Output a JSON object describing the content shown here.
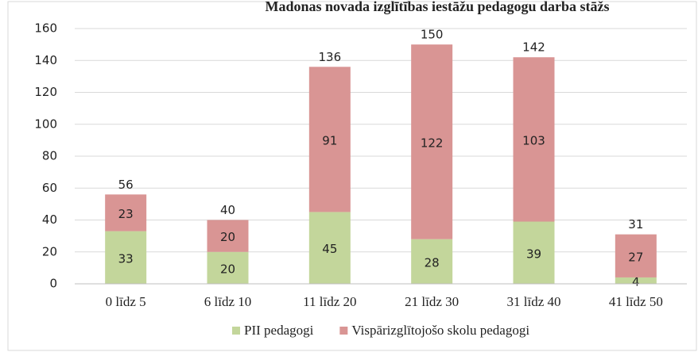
{
  "chart_data": {
    "type": "stacked_bar",
    "title": "Madonas novada izglītības iestāžu pedagogu darba stāžs",
    "categories": [
      "0 līdz 5",
      "6 līdz 10",
      "11 līdz 20",
      "21 līdz 30",
      "31 līdz 40",
      "41 līdz 50"
    ],
    "series": [
      {
        "name": "PII pedagogi",
        "color": "#c3d69b",
        "values": [
          33,
          20,
          45,
          28,
          39,
          4
        ]
      },
      {
        "name": "Vispārizglītojošo skolu pedagogi",
        "color": "#d99594",
        "values": [
          23,
          20,
          91,
          122,
          103,
          27
        ]
      }
    ],
    "totals": [
      56,
      40,
      136,
      150,
      142,
      31
    ],
    "ylim": [
      0,
      160
    ],
    "yticks": [
      0,
      20,
      40,
      60,
      80,
      100,
      120,
      140,
      160
    ],
    "grid": true,
    "legend": "bottom"
  }
}
